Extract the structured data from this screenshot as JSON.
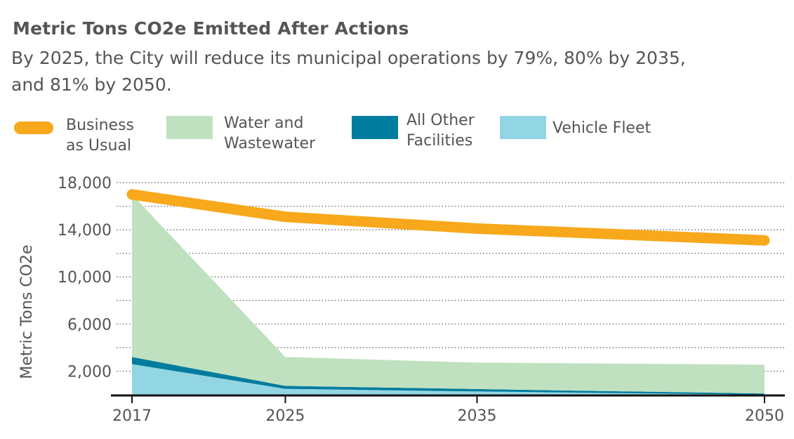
{
  "chart_data": {
    "type": "area",
    "title": "Metric Tons CO2e Emitted After Actions",
    "subtitle": "By 2025, the City will reduce its municipal operations by 79%, 80% by 2035, and 81% by 2050.",
    "ylabel": "Metric Tons CO2e",
    "xlabel": "",
    "x": [
      "2017",
      "2025",
      "2035",
      "2050"
    ],
    "x_numeric": [
      2017,
      2025,
      2035,
      2050
    ],
    "ylim": [
      0,
      18000
    ],
    "y_ticks": [
      2000,
      6000,
      10000,
      14000,
      18000
    ],
    "y_tick_labels": [
      "2,000",
      "6,000",
      "10,000",
      "14,000",
      "18,000"
    ],
    "grid": true,
    "legend_position": "top",
    "stacked_series": [
      {
        "name": "Vehicle Fleet",
        "color": "#93d6e3",
        "values": [
          2600,
          500,
          280,
          0
        ]
      },
      {
        "name": "All Other Facilities",
        "color": "#007c9e",
        "values": [
          600,
          250,
          200,
          100
        ]
      },
      {
        "name": "Water and Wastewater",
        "color": "#bfe1bf",
        "values": [
          13800,
          2450,
          2250,
          2450
        ]
      }
    ],
    "line_series": [
      {
        "name": "Business as Usual",
        "color": "#f7a81b",
        "values": [
          17000,
          15100,
          14100,
          13100
        ]
      }
    ]
  },
  "legend": [
    {
      "label_line1": "Business",
      "label_line2": "as Usual",
      "color": "#f7a81b"
    },
    {
      "label_line1": "Water and",
      "label_line2": "Wastewater",
      "color": "#bfe1bf"
    },
    {
      "label_line1": "All Other",
      "label_line2": "Facilities",
      "color": "#007c9e"
    },
    {
      "label_line1": "Vehicle Fleet",
      "label_line2": "",
      "color": "#93d6e3"
    }
  ]
}
